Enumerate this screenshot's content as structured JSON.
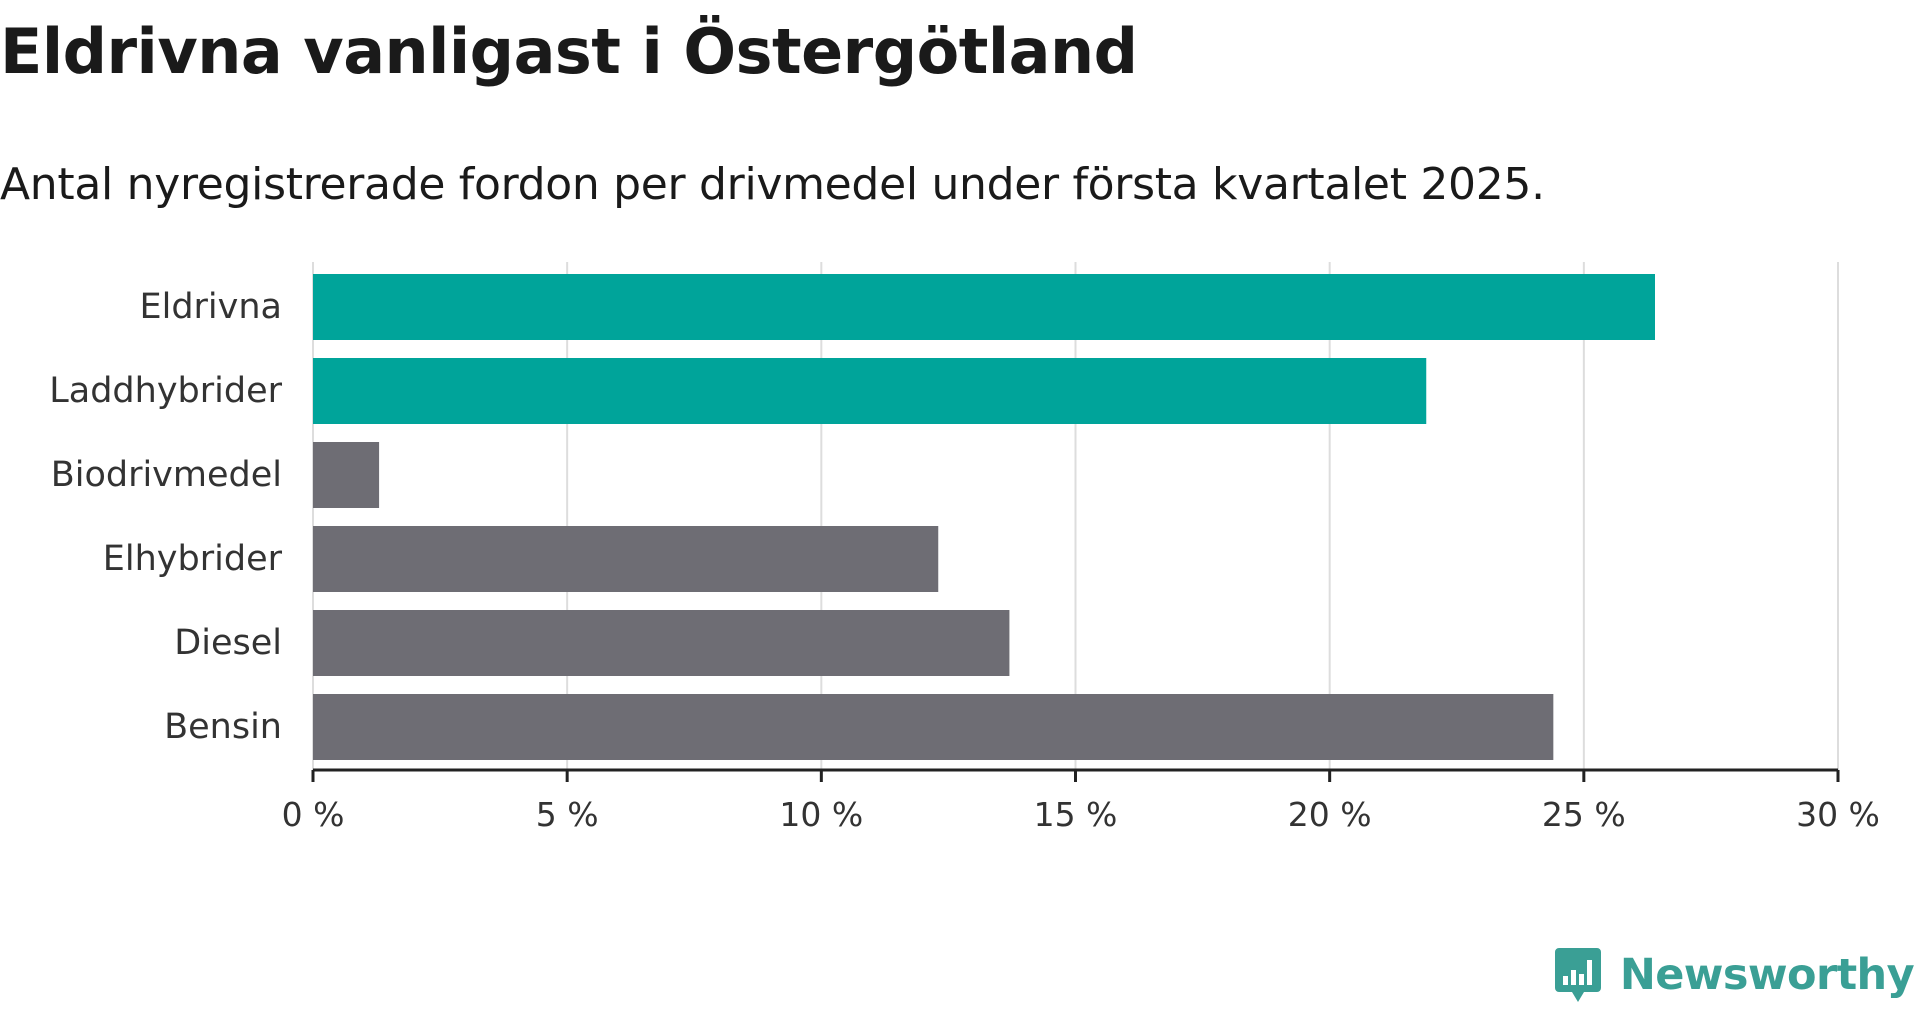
{
  "title": "Eldrivna vanligast i Östergötland",
  "subtitle": "Antal nyregistrerade fordon per drivmedel under första kvartalet 2025.",
  "brand": {
    "name": "Newsworthy",
    "logo_icon": "newsworthy-logo-icon",
    "color": "#3a9f95"
  },
  "colors": {
    "highlight": "#00a49a",
    "other": "#6e6d74",
    "grid": "#dddddd",
    "axis": "#222222",
    "text": "#333333"
  },
  "chart_data": {
    "type": "bar",
    "orientation": "horizontal",
    "categories": [
      "Eldrivna",
      "Laddhybrider",
      "Biodrivmedel",
      "Elhybrider",
      "Diesel",
      "Bensin"
    ],
    "values": [
      26.4,
      21.9,
      1.3,
      12.3,
      13.7,
      24.4
    ],
    "highlighted": [
      true,
      true,
      false,
      false,
      false,
      false
    ],
    "xlim": [
      0,
      30
    ],
    "ticks": [
      0,
      5,
      10,
      15,
      20,
      25,
      30
    ],
    "tick_labels": [
      "0 %",
      "5 %",
      "10 %",
      "15 %",
      "20 %",
      "25 %",
      "30 %"
    ],
    "grid": true
  }
}
